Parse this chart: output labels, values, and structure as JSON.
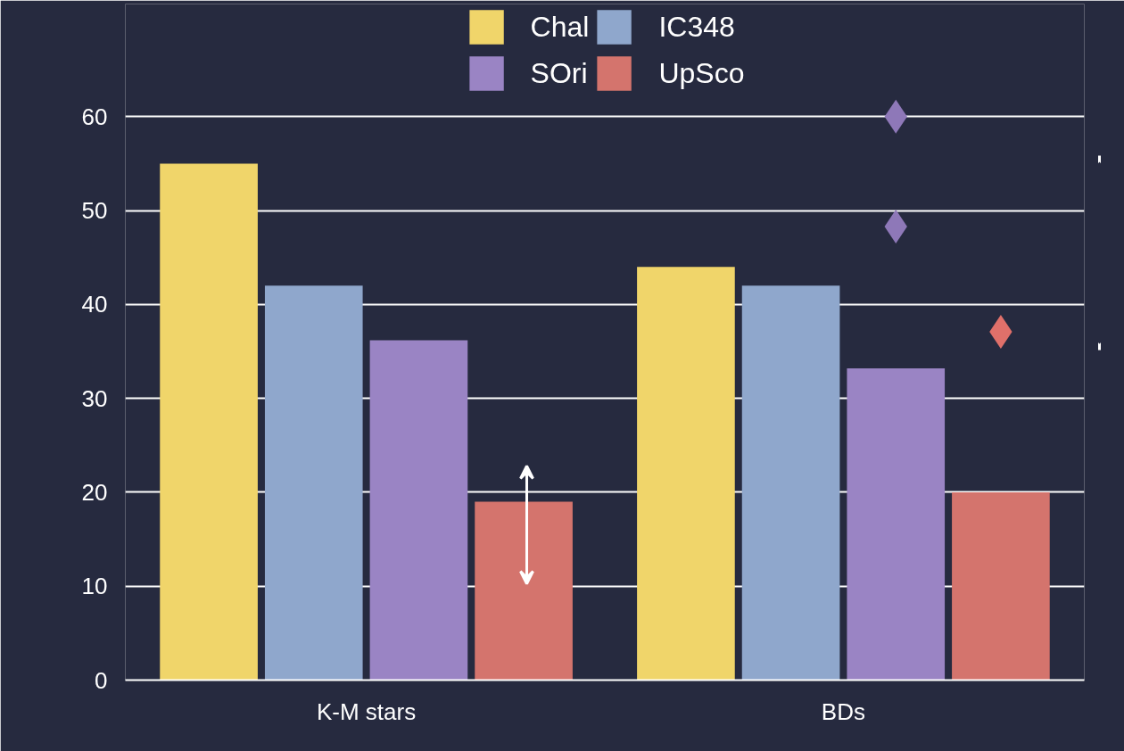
{
  "chart_data": {
    "type": "bar",
    "categories": [
      "K-M stars",
      "BDs"
    ],
    "series": [
      {
        "name": "Chal",
        "color": "#f0d56a",
        "values": [
          55,
          44
        ]
      },
      {
        "name": "IC348",
        "color": "#8fa7cc",
        "values": [
          42,
          42
        ]
      },
      {
        "name": "SOri",
        "color": "#9a84c4",
        "values": [
          36.2,
          33.2
        ]
      },
      {
        "name": "UpSco",
        "color": "#d4746d",
        "values": [
          19,
          20
        ]
      },
      {
        "type": "scatter",
        "color": "#8e78b8",
        "x": [
          "BDs",
          "BDs"
        ],
        "values": [
          60,
          48.3
        ]
      },
      {
        "type": "scatter",
        "color": "#e0706a",
        "x": [
          "BDs"
        ],
        "values": [
          37.1
        ]
      }
    ],
    "ylim": [
      0,
      72
    ],
    "yticks": [
      0,
      10,
      20,
      30,
      40,
      50,
      60
    ],
    "grid": "y",
    "legend": "top",
    "marker": "diamond"
  }
}
